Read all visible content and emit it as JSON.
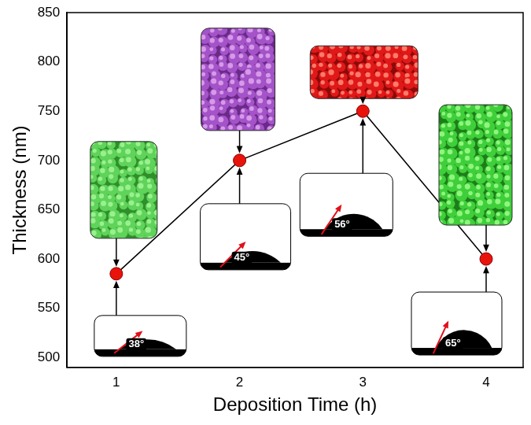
{
  "chart_data": {
    "type": "line",
    "x": [
      1,
      2,
      3,
      4
    ],
    "values": [
      585,
      700,
      750,
      600
    ],
    "x_label": "Deposition Time (h)",
    "y_label": "Thickness (nm)",
    "xlim": [
      0.6,
      4.3
    ],
    "ylim": [
      490,
      850
    ],
    "xticks": [
      1,
      2,
      3,
      4
    ],
    "yticks": [
      500,
      550,
      600,
      650,
      700,
      750,
      800,
      850
    ],
    "grid": false,
    "color": "#e8140c",
    "marker": "circle",
    "annotations": [
      "38°",
      "45°",
      "56°",
      "65°"
    ]
  }
}
